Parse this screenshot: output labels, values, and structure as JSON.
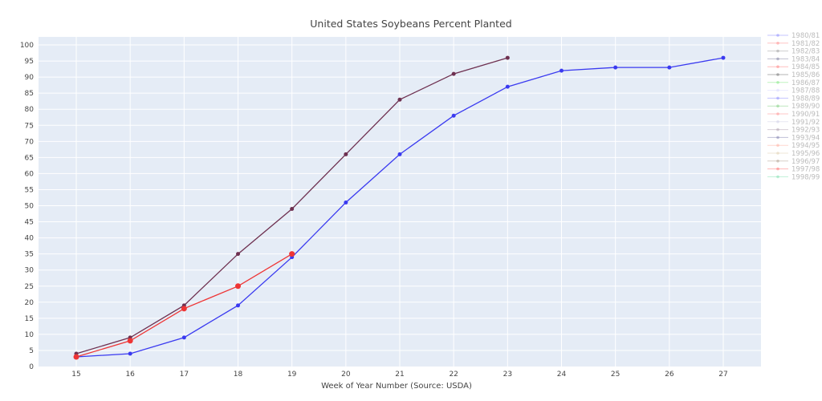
{
  "chart_data": {
    "type": "line",
    "title": "United States Soybeans Percent Planted",
    "xlabel": "Week of Year Number     (Source: USDA)",
    "ylabel": "",
    "xlim": [
      14.3,
      27.7
    ],
    "ylim": [
      0,
      102.5
    ],
    "x_ticks": [
      15,
      16,
      17,
      18,
      19,
      20,
      21,
      22,
      23,
      24,
      25,
      26,
      27
    ],
    "y_ticks": [
      0,
      5,
      10,
      15,
      20,
      25,
      30,
      35,
      40,
      45,
      50,
      55,
      60,
      65,
      70,
      75,
      80,
      85,
      90,
      95,
      100
    ],
    "grid": true,
    "legend_position": "right",
    "series": [
      {
        "name": "1980/81",
        "color": "#8b8bff",
        "x": [],
        "y": []
      },
      {
        "name": "1981/82",
        "color": "#ff8b8b",
        "x": [],
        "y": []
      },
      {
        "name": "1982/83",
        "color": "#a0a0a0",
        "x": [],
        "y": []
      },
      {
        "name": "1983/84",
        "color": "#8080a0",
        "x": [],
        "y": []
      },
      {
        "name": "1984/85",
        "color": "#ff8080",
        "x": [],
        "y": []
      },
      {
        "name": "1985/86",
        "color": "#707070",
        "x": [],
        "y": []
      },
      {
        "name": "1986/87",
        "color": "#80e880",
        "x": [],
        "y": []
      },
      {
        "name": "1987/88",
        "color": "#d8d8ff",
        "x": [],
        "y": []
      },
      {
        "name": "1988/89",
        "color": "#8b8bff",
        "x": [],
        "y": []
      },
      {
        "name": "1989/90",
        "color": "#80d080",
        "x": [],
        "y": []
      },
      {
        "name": "1990/91",
        "color": "#ff9090",
        "x": [],
        "y": []
      },
      {
        "name": "1991/92",
        "color": "#d0d0e8",
        "x": [],
        "y": []
      },
      {
        "name": "1992/93",
        "color": "#b0a0b0",
        "x": [],
        "y": []
      },
      {
        "name": "1993/94",
        "color": "#8080b0",
        "x": [],
        "y": []
      },
      {
        "name": "1994/95",
        "color": "#ffb0a0",
        "x": [],
        "y": []
      },
      {
        "name": "1995/96",
        "color": "#e0d0b0",
        "x": [],
        "y": []
      },
      {
        "name": "1996/97",
        "color": "#b0a090",
        "x": [],
        "y": []
      },
      {
        "name": "1997/98",
        "color": "#ff7070",
        "x": [],
        "y": []
      },
      {
        "name": "1998/99",
        "color": "#80e0b0",
        "x": [],
        "y": []
      }
    ],
    "plotted_series": [
      {
        "color": "#3a3af0",
        "x": [
          15,
          16,
          17,
          18,
          19,
          20,
          21,
          22,
          23,
          24,
          25,
          26,
          27
        ],
        "y": [
          3,
          4,
          9,
          19,
          34,
          51,
          66,
          78,
          87,
          92,
          93,
          93,
          96
        ],
        "marker_size": 2.5
      },
      {
        "color": "#6e3050",
        "x": [
          15,
          16,
          17,
          18,
          19,
          20,
          21,
          22,
          23
        ],
        "y": [
          4,
          9,
          19,
          35,
          49,
          66,
          83,
          91,
          96
        ],
        "marker_size": 2.5
      },
      {
        "color": "#ee3535",
        "x": [
          15,
          16,
          17,
          18,
          19
        ],
        "y": [
          3,
          8,
          18,
          25,
          35
        ],
        "marker_size": 3.5
      }
    ]
  }
}
